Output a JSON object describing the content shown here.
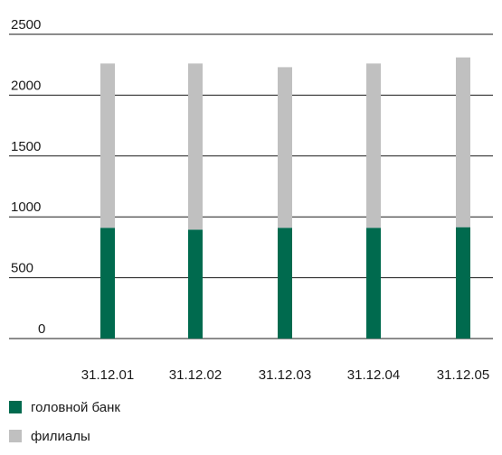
{
  "chart_data": {
    "type": "bar",
    "stacked": true,
    "categories": [
      "31.12.01",
      "31.12.02",
      "31.12.03",
      "31.12.04",
      "31.12.05"
    ],
    "series": [
      {
        "name": "головной банк",
        "color": "#006a4e",
        "values": [
          910,
          895,
          910,
          910,
          915
        ]
      },
      {
        "name": "филиалы",
        "color": "#c0c0c0",
        "values": [
          1350,
          1365,
          1320,
          1350,
          1395
        ]
      }
    ],
    "ylim": [
      0,
      2500
    ],
    "yticks": [
      0,
      500,
      1000,
      1500,
      2000,
      2500
    ],
    "grid": true,
    "legend_position": "bottom-left",
    "title": "",
    "xlabel": "",
    "ylabel": ""
  }
}
